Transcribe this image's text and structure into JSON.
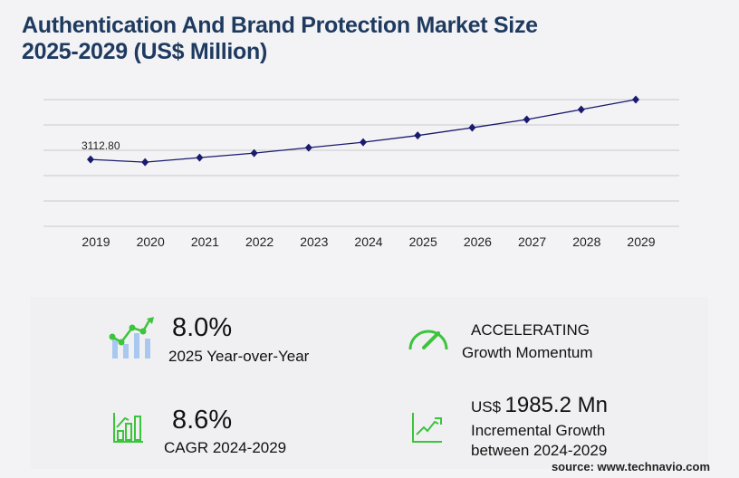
{
  "title_line1": "Authentication And Brand Protection Market Size",
  "title_line2": "2025-2029 (US$ Million)",
  "chart_data": {
    "type": "line",
    "title": "Authentication And Brand Protection Market Size 2025-2029 (US$ Million)",
    "categories": [
      "2019",
      "2020",
      "2021",
      "2022",
      "2023",
      "2024",
      "2025",
      "2026",
      "2027",
      "2028",
      "2029"
    ],
    "values": [
      3112.8,
      2986,
      3197,
      3408,
      3662,
      3915,
      4228,
      4591,
      4971,
      5436,
      5900
    ],
    "data_labels": [
      {
        "index": 0,
        "text": "3112.80"
      }
    ],
    "ylim": [
      0,
      5900
    ],
    "grid": true,
    "color": "#1a1a6e"
  },
  "stats": {
    "yoy": {
      "value": "8.0%",
      "label": "2025 Year-over-Year"
    },
    "momentum": {
      "value": "ACCELERATING",
      "label": "Growth Momentum"
    },
    "cagr": {
      "value": "8.6%",
      "label": "CAGR 2024-2029"
    },
    "incremental": {
      "prefix": "US$",
      "value": "1985.2 Mn",
      "label1": "Incremental Growth",
      "label2": "between 2024-2029"
    }
  },
  "source": "source: www.technavio.com",
  "colors": {
    "accent_green": "#3cc43c",
    "bar_blue": "#a8c8f0",
    "title": "#1e3a5f"
  }
}
